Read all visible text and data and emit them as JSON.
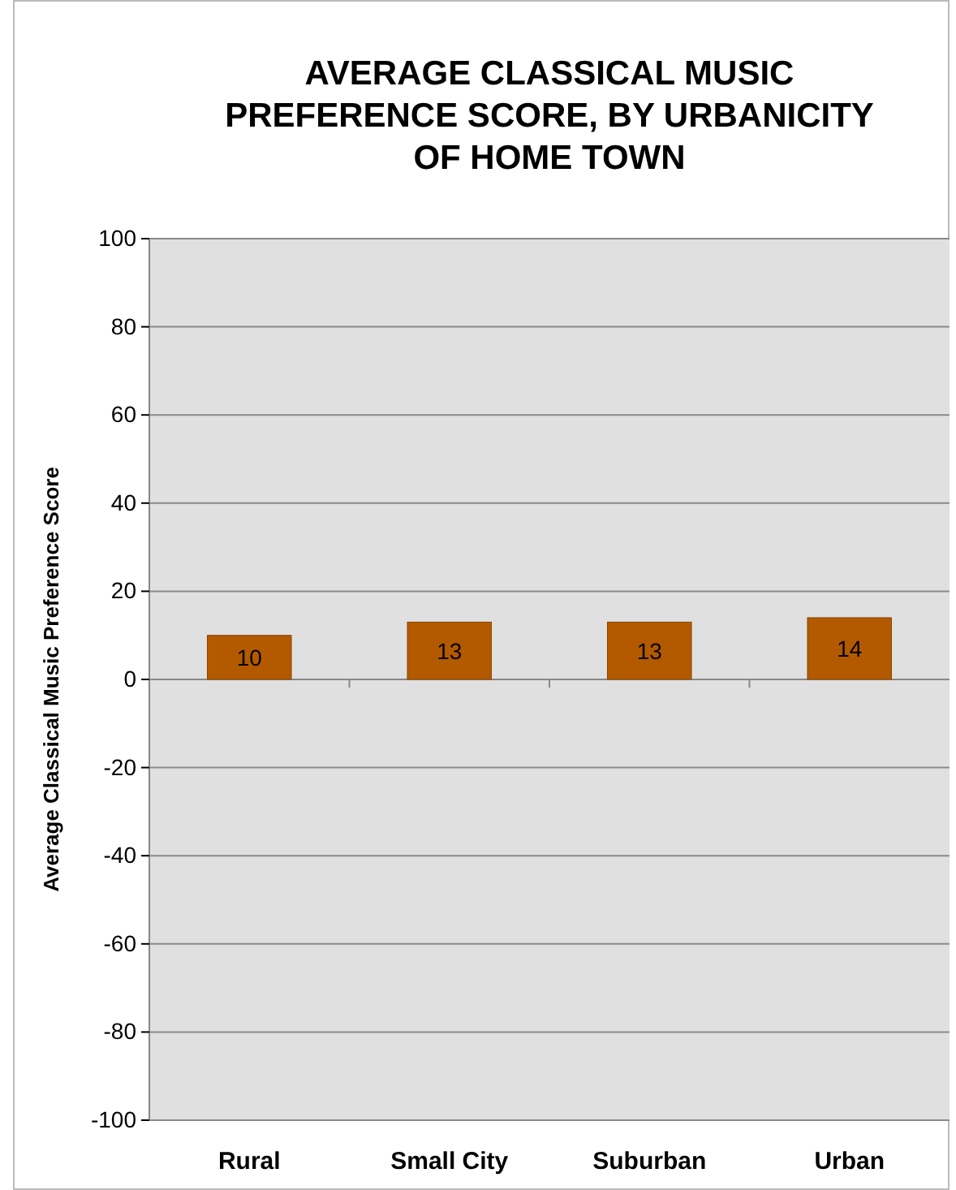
{
  "chart_data": {
    "type": "bar",
    "title": "AVERAGE CLASSICAL MUSIC PREFERENCE SCORE, BY URBANICITY OF HOME TOWN",
    "ylabel": "Average Classical Music Preference Score",
    "categories": [
      "Rural",
      "Small City",
      "Suburban",
      "Urban"
    ],
    "values": [
      10,
      13,
      13,
      14
    ],
    "color": "#b35a00",
    "ylim": [
      -100,
      100
    ],
    "yticks": [
      -100,
      -80,
      -60,
      -40,
      -20,
      0,
      20,
      40,
      60,
      80,
      100
    ],
    "grid": "y",
    "data_labels": true
  }
}
